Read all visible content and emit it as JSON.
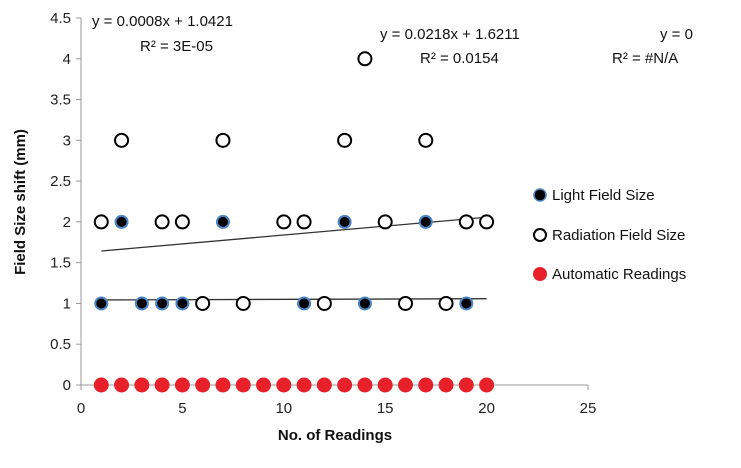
{
  "chart_data": {
    "type": "scatter",
    "xlabel": "No. of Readings",
    "ylabel": "Field Size shift (mm)",
    "xlim": [
      0,
      25
    ],
    "ylim": [
      0,
      4.5
    ],
    "xticks": [
      0,
      5,
      10,
      15,
      20,
      25
    ],
    "yticks": [
      0,
      0.5,
      1,
      1.5,
      2,
      2.5,
      3,
      3.5,
      4,
      4.5
    ],
    "grid": false,
    "legend_position": "right",
    "series": [
      {
        "name": "Light Field Size",
        "marker": "filled-black-blue-edge",
        "color": "#000000",
        "edge": "#4a86c8",
        "points": [
          [
            1,
            1
          ],
          [
            2,
            2
          ],
          [
            3,
            1
          ],
          [
            4,
            1
          ],
          [
            5,
            1
          ],
          [
            7,
            2
          ],
          [
            11,
            1
          ],
          [
            13,
            2
          ],
          [
            14,
            1
          ],
          [
            17,
            2
          ],
          [
            19,
            1
          ]
        ]
      },
      {
        "name": "Radiation Field Size",
        "marker": "open-circle",
        "color": "#000000",
        "points": [
          [
            1,
            2
          ],
          [
            2,
            3
          ],
          [
            4,
            2
          ],
          [
            5,
            2
          ],
          [
            6,
            1
          ],
          [
            7,
            3
          ],
          [
            8,
            1
          ],
          [
            10,
            2
          ],
          [
            11,
            2
          ],
          [
            12,
            1
          ],
          [
            13,
            3
          ],
          [
            14,
            4
          ],
          [
            15,
            2
          ],
          [
            16,
            1
          ],
          [
            17,
            3
          ],
          [
            18,
            1
          ],
          [
            19,
            2
          ],
          [
            20,
            2
          ]
        ]
      },
      {
        "name": "Automatic Readings",
        "marker": "filled-circle",
        "color": "#e8202a",
        "points": [
          [
            1,
            0
          ],
          [
            2,
            0
          ],
          [
            3,
            0
          ],
          [
            4,
            0
          ],
          [
            5,
            0
          ],
          [
            6,
            0
          ],
          [
            7,
            0
          ],
          [
            8,
            0
          ],
          [
            9,
            0
          ],
          [
            10,
            0
          ],
          [
            11,
            0
          ],
          [
            12,
            0
          ],
          [
            13,
            0
          ],
          [
            14,
            0
          ],
          [
            15,
            0
          ],
          [
            16,
            0
          ],
          [
            17,
            0
          ],
          [
            18,
            0
          ],
          [
            19,
            0
          ],
          [
            20,
            0
          ]
        ]
      }
    ],
    "trendlines": [
      {
        "slope": 0.0008,
        "intercept": 1.0421,
        "x_range": [
          1,
          20
        ],
        "equation": "y = 0.0008x + 1.0421",
        "r2": "R² = 3E-05"
      },
      {
        "slope": 0.0218,
        "intercept": 1.6211,
        "x_range": [
          1,
          20
        ],
        "equation": "y = 0.0218x + 1.6211",
        "r2": "R² = 0.0154"
      },
      {
        "slope": 0,
        "intercept": 0,
        "x_range": [
          1,
          20
        ],
        "equation": "y = 0",
        "r2": "R² = #N/A"
      }
    ]
  }
}
